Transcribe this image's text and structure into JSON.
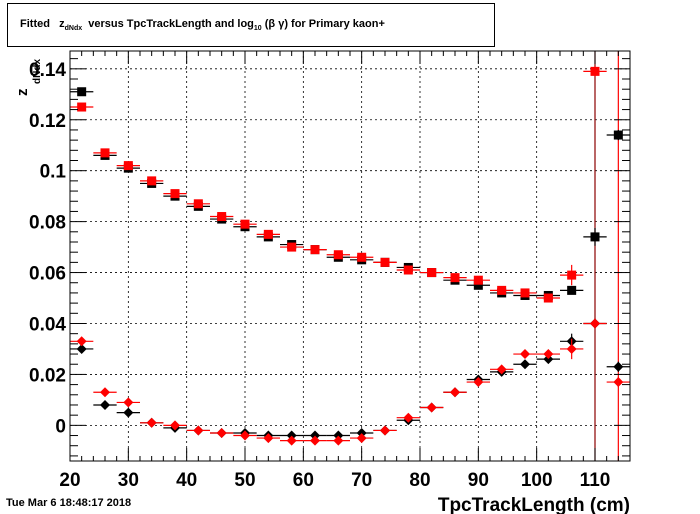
{
  "title": {
    "fitted": "Fitted",
    "z": "z",
    "z_sub": "dNdx",
    "mid": "versus TpcTrackLength and log",
    "log_sub": "10",
    "tail": "(β γ) for Primary kaon+"
  },
  "timestamp": "Tue Mar  6 18:48:17 2018",
  "chart_data": {
    "type": "scatter",
    "title": "Fitted z_dNdx versus TpcTrackLength and log10 (β γ) for Primary kaon+",
    "xlabel": "TpcTrackLength (cm)",
    "ylabel": "z",
    "ylabel_sub": "dNdx",
    "xlim": [
      20,
      116
    ],
    "ylim": [
      -0.014,
      0.147
    ],
    "xticks": [
      20,
      30,
      40,
      50,
      60,
      70,
      80,
      90,
      100,
      110
    ],
    "xtick_labels": [
      "20",
      "30",
      "40",
      "50",
      "60",
      "70",
      "80",
      "90",
      "100",
      "110"
    ],
    "yticks": [
      0,
      0.02,
      0.04,
      0.06,
      0.08,
      0.1,
      0.12,
      0.14
    ],
    "ytick_labels": [
      "0",
      "0.02",
      "0.04",
      "0.06",
      "0.08",
      "0.1",
      "0.12",
      "0.14"
    ],
    "grid": true,
    "x_error": 2,
    "vertical_lines": [
      {
        "x": 110,
        "color": "#8b0000"
      },
      {
        "x": 114,
        "color": "#ff0000"
      }
    ],
    "series": [
      {
        "marker": "square",
        "color": "#000000",
        "x": [
          22,
          26,
          30,
          34,
          38,
          42,
          46,
          50,
          54,
          58,
          62,
          66,
          70,
          74,
          78,
          82,
          86,
          90,
          94,
          98,
          102,
          106,
          110,
          114
        ],
        "y": [
          0.131,
          0.106,
          0.101,
          0.095,
          0.09,
          0.086,
          0.081,
          0.078,
          0.074,
          0.071,
          0.069,
          0.066,
          0.065,
          0.064,
          0.062,
          0.06,
          0.057,
          0.055,
          0.052,
          0.051,
          0.051,
          0.053,
          0.074,
          0.114
        ],
        "yerr": [
          0.0012,
          0.0008,
          0.0007,
          0.0006,
          0.0006,
          0.0005,
          0.0005,
          0.0005,
          0.0005,
          0.0005,
          0.0005,
          0.0005,
          0.0005,
          0.0005,
          0.0005,
          0.0005,
          0.0006,
          0.0006,
          0.0006,
          0.0007,
          0.0008,
          0.0015,
          0.0035,
          0.002
        ]
      },
      {
        "marker": "square",
        "color": "#ff0000",
        "x": [
          22,
          26,
          30,
          34,
          38,
          42,
          46,
          50,
          54,
          58,
          62,
          66,
          70,
          74,
          78,
          82,
          86,
          90,
          94,
          98,
          102,
          106,
          110
        ],
        "y": [
          0.125,
          0.107,
          0.102,
          0.096,
          0.091,
          0.087,
          0.082,
          0.079,
          0.075,
          0.07,
          0.069,
          0.067,
          0.066,
          0.064,
          0.061,
          0.06,
          0.058,
          0.057,
          0.053,
          0.052,
          0.05,
          0.059,
          0.139
        ],
        "yerr": [
          0.0012,
          0.0008,
          0.0007,
          0.0006,
          0.0006,
          0.0005,
          0.0005,
          0.0005,
          0.0005,
          0.0005,
          0.0005,
          0.0005,
          0.0005,
          0.0005,
          0.0005,
          0.0005,
          0.0006,
          0.0006,
          0.0006,
          0.0007,
          0.0008,
          0.004,
          0.002
        ]
      },
      {
        "marker": "diamond",
        "color": "#000000",
        "x": [
          22,
          26,
          30,
          34,
          38,
          42,
          46,
          50,
          54,
          58,
          62,
          66,
          70,
          74,
          78,
          82,
          86,
          90,
          94,
          98,
          102,
          106,
          110,
          114
        ],
        "y": [
          0.03,
          0.008,
          0.005,
          0.001,
          -0.001,
          -0.002,
          -0.003,
          -0.003,
          -0.004,
          -0.004,
          -0.004,
          -0.004,
          -0.003,
          -0.002,
          0.002,
          0.007,
          0.013,
          0.018,
          0.021,
          0.024,
          0.026,
          0.033,
          0.04,
          0.023
        ],
        "yerr": [
          0.0012,
          0.0008,
          0.0007,
          0.0006,
          0.0006,
          0.0005,
          0.0005,
          0.0005,
          0.0005,
          0.0005,
          0.0005,
          0.0005,
          0.0005,
          0.0005,
          0.0005,
          0.0005,
          0.0006,
          0.0006,
          0.0006,
          0.0007,
          0.0008,
          0.003,
          0.002,
          0.002
        ]
      },
      {
        "marker": "diamond",
        "color": "#ff0000",
        "x": [
          22,
          26,
          30,
          34,
          38,
          42,
          46,
          50,
          54,
          58,
          62,
          66,
          70,
          74,
          78,
          82,
          86,
          90,
          94,
          98,
          102,
          106,
          110,
          114
        ],
        "y": [
          0.033,
          0.013,
          0.009,
          0.001,
          0.0,
          -0.002,
          -0.003,
          -0.004,
          -0.005,
          -0.006,
          -0.006,
          -0.006,
          -0.005,
          -0.002,
          0.003,
          0.007,
          0.013,
          0.017,
          0.022,
          0.028,
          0.028,
          0.03,
          0.04,
          0.017
        ],
        "yerr": [
          0.0012,
          0.0008,
          0.0007,
          0.0006,
          0.0006,
          0.0005,
          0.0005,
          0.0005,
          0.0005,
          0.0005,
          0.0005,
          0.0005,
          0.0005,
          0.0005,
          0.0005,
          0.0005,
          0.0006,
          0.0006,
          0.0006,
          0.0007,
          0.0008,
          0.004,
          0.002,
          0.002
        ]
      }
    ]
  }
}
